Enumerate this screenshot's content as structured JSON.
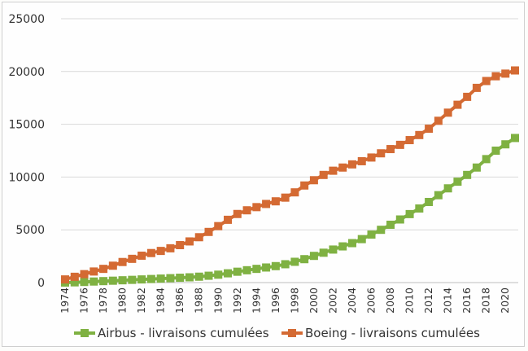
{
  "chart_data": {
    "type": "line",
    "title": "",
    "xlabel": "",
    "ylabel": "",
    "ylim": [
      0,
      25000
    ],
    "yticks": [
      0,
      5000,
      10000,
      15000,
      20000,
      25000
    ],
    "x": [
      1974,
      1975,
      1976,
      1977,
      1978,
      1979,
      1980,
      1981,
      1982,
      1983,
      1984,
      1985,
      1986,
      1987,
      1988,
      1989,
      1990,
      1991,
      1992,
      1993,
      1994,
      1995,
      1996,
      1997,
      1998,
      1999,
      2000,
      2001,
      2002,
      2003,
      2004,
      2005,
      2006,
      2007,
      2008,
      2009,
      2010,
      2011,
      2012,
      2013,
      2014,
      2015,
      2016,
      2017,
      2018,
      2019,
      2020,
      2021
    ],
    "xtick_labels": [
      "1974",
      "1976",
      "1978",
      "1980",
      "1982",
      "1984",
      "1986",
      "1988",
      "1990",
      "1992",
      "1994",
      "1996",
      "1998",
      "2000",
      "2002",
      "2004",
      "2006",
      "2008",
      "2010",
      "2012",
      "2014",
      "2016",
      "2018",
      "2020"
    ],
    "grid": true,
    "legend": "bottom",
    "series": [
      {
        "name": "Airbus - livraisons cumulées",
        "color": "#7fb142",
        "values": [
          4,
          25,
          60,
          100,
          140,
          180,
          220,
          260,
          300,
          340,
          380,
          420,
          460,
          500,
          560,
          650,
          750,
          880,
          1030,
          1170,
          1300,
          1430,
          1560,
          1740,
          1970,
          2220,
          2530,
          2830,
          3130,
          3430,
          3740,
          4120,
          4550,
          5000,
          5480,
          5980,
          6490,
          7020,
          7640,
          8280,
          8930,
          9560,
          10200,
          10900,
          11700,
          12500,
          13100,
          13700
        ]
      },
      {
        "name": "Boeing - livraisons cumulées",
        "color": "#d46a33",
        "values": [
          300,
          550,
          800,
          1050,
          1300,
          1600,
          1950,
          2250,
          2550,
          2800,
          3000,
          3250,
          3550,
          3900,
          4300,
          4800,
          5350,
          5950,
          6500,
          6850,
          7150,
          7450,
          7700,
          8050,
          8550,
          9200,
          9700,
          10200,
          10600,
          10900,
          11200,
          11500,
          11850,
          12250,
          12650,
          13050,
          13500,
          13980,
          14580,
          15330,
          16100,
          16850,
          17600,
          18450,
          19100,
          19550,
          19800,
          20100
        ]
      }
    ]
  }
}
